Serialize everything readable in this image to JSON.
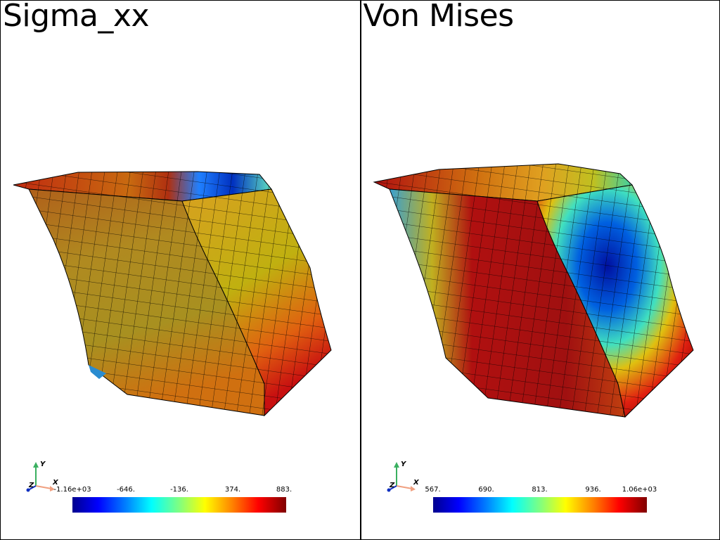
{
  "viewports": [
    {
      "title": "Sigma_xx",
      "axes": {
        "x": "X",
        "y": "Y",
        "z": "Z"
      },
      "scalar_bar": {
        "labels": [
          "-1.16e+03",
          "-646.",
          "-136.",
          "374.",
          "883."
        ]
      }
    },
    {
      "title": "Von Mises",
      "axes": {
        "x": "X",
        "y": "Y",
        "z": "Z"
      },
      "scalar_bar": {
        "labels": [
          "567.",
          "690.",
          "813.",
          "936.",
          "1.06e+03"
        ]
      }
    }
  ]
}
